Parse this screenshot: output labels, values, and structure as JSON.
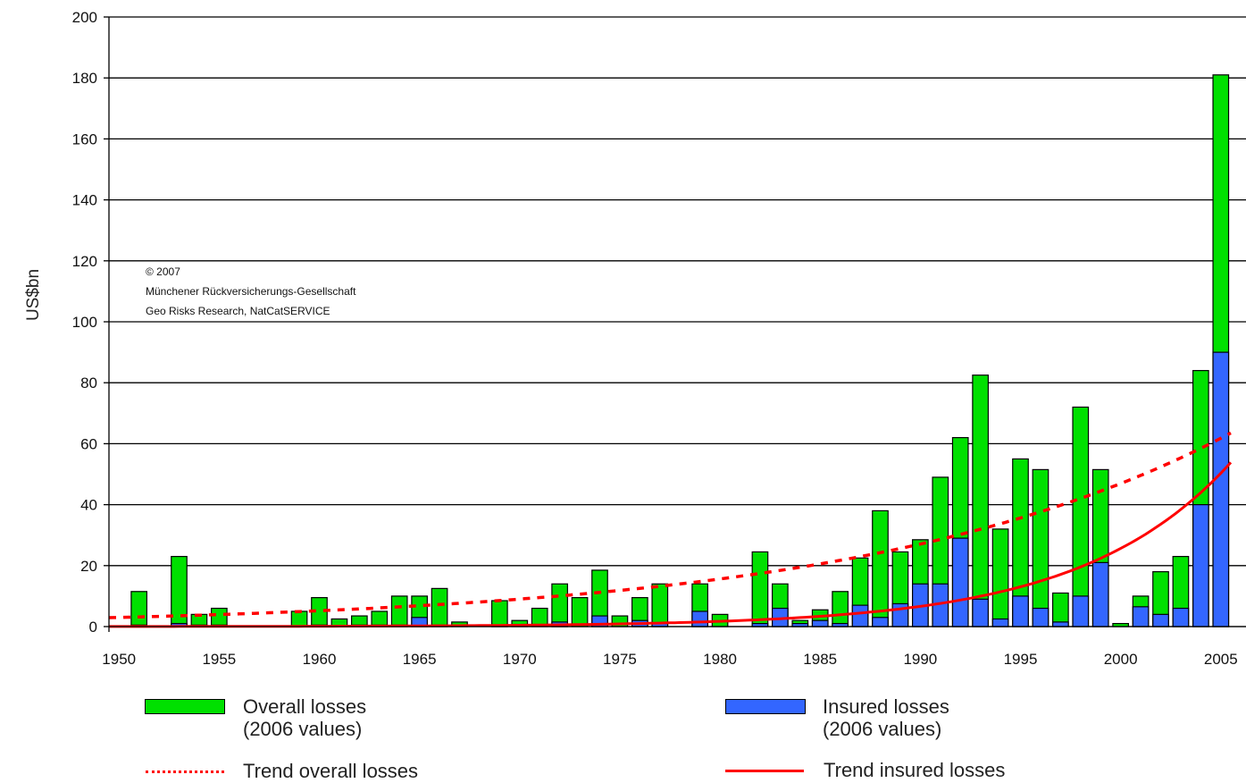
{
  "chart_data": {
    "type": "bar",
    "title": "",
    "ylabel": "US$bn",
    "xlabel": "",
    "ylim": [
      0,
      200
    ],
    "yticks": [
      0,
      20,
      40,
      60,
      80,
      100,
      120,
      140,
      160,
      180,
      200
    ],
    "xlim": [
      1949.5,
      2005.5
    ],
    "xticks": [
      1950,
      1955,
      1960,
      1965,
      1970,
      1975,
      1980,
      1985,
      1990,
      1995,
      2000,
      2005
    ],
    "grid": "horizontal",
    "credit": [
      "© 2007",
      "Münchener Rückversicherungs-Gesellschaft",
      "Geo Risks Research, NatCatSERVICE"
    ],
    "colors": {
      "overall": "#00e000",
      "insured": "#3366ff",
      "trend": "#ff0000"
    },
    "series": [
      {
        "name": "Overall losses (2006 values)",
        "points": [
          [
            1951,
            11.5
          ],
          [
            1953,
            23
          ],
          [
            1954,
            4
          ],
          [
            1955,
            6
          ],
          [
            1959,
            5
          ],
          [
            1960,
            9.5
          ],
          [
            1961,
            2.5
          ],
          [
            1962,
            3.5
          ],
          [
            1963,
            5
          ],
          [
            1964,
            10
          ],
          [
            1965,
            10
          ],
          [
            1966,
            12.5
          ],
          [
            1967,
            1.5
          ],
          [
            1969,
            8.5
          ],
          [
            1970,
            2
          ],
          [
            1971,
            6
          ],
          [
            1972,
            14
          ],
          [
            1973,
            9.5
          ],
          [
            1974,
            18.5
          ],
          [
            1975,
            3.5
          ],
          [
            1976,
            9.5
          ],
          [
            1977,
            14
          ],
          [
            1979,
            14
          ],
          [
            1980,
            4
          ],
          [
            1982,
            24.5
          ],
          [
            1983,
            14
          ],
          [
            1984,
            2
          ],
          [
            1985,
            5.5
          ],
          [
            1986,
            11.5
          ],
          [
            1987,
            22.5
          ],
          [
            1988,
            38
          ],
          [
            1989,
            24.5
          ],
          [
            1990,
            28.5
          ],
          [
            1991,
            49
          ],
          [
            1992,
            62
          ],
          [
            1993,
            82.5
          ],
          [
            1994,
            32
          ],
          [
            1995,
            55
          ],
          [
            1996,
            51.5
          ],
          [
            1997,
            11
          ],
          [
            1998,
            72
          ],
          [
            1999,
            51.5
          ],
          [
            2000,
            1
          ],
          [
            2001,
            10
          ],
          [
            2002,
            18
          ],
          [
            2003,
            23
          ],
          [
            2004,
            84
          ],
          [
            2005,
            181
          ]
        ]
      },
      {
        "name": "Insured losses (2006 values)",
        "points": [
          [
            1951,
            0.5
          ],
          [
            1953,
            1
          ],
          [
            1954,
            0.5
          ],
          [
            1955,
            0.5
          ],
          [
            1960,
            0.5
          ],
          [
            1962,
            0.5
          ],
          [
            1963,
            0.5
          ],
          [
            1964,
            0.5
          ],
          [
            1965,
            3
          ],
          [
            1966,
            0.5
          ],
          [
            1969,
            0.5
          ],
          [
            1972,
            1.5
          ],
          [
            1974,
            3.5
          ],
          [
            1976,
            2
          ],
          [
            1977,
            1
          ],
          [
            1979,
            5
          ],
          [
            1982,
            1
          ],
          [
            1983,
            6
          ],
          [
            1984,
            1
          ],
          [
            1985,
            2
          ],
          [
            1986,
            1
          ],
          [
            1987,
            7
          ],
          [
            1988,
            3
          ],
          [
            1989,
            7.5
          ],
          [
            1990,
            14
          ],
          [
            1991,
            14
          ],
          [
            1992,
            29
          ],
          [
            1993,
            9
          ],
          [
            1994,
            2.5
          ],
          [
            1995,
            10
          ],
          [
            1996,
            6
          ],
          [
            1997,
            1.5
          ],
          [
            1998,
            10
          ],
          [
            1999,
            21
          ],
          [
            2001,
            6.5
          ],
          [
            2002,
            4
          ],
          [
            2003,
            6
          ],
          [
            2004,
            40
          ],
          [
            2005,
            90
          ]
        ]
      },
      {
        "name": "Trend overall losses",
        "style": "dotted",
        "a": 3.0,
        "b": 0.055
      },
      {
        "name": "Trend insured losses",
        "style": "solid",
        "a": 0.03,
        "b": 0.135
      }
    ],
    "legend": {
      "overall_label_1": "Overall losses",
      "overall_label_2": "(2006 values)",
      "insured_label_1": "Insured losses",
      "insured_label_2": "(2006 values)",
      "trend_overall_label": "Trend overall losses",
      "trend_insured_label": "Trend insured losses"
    }
  }
}
